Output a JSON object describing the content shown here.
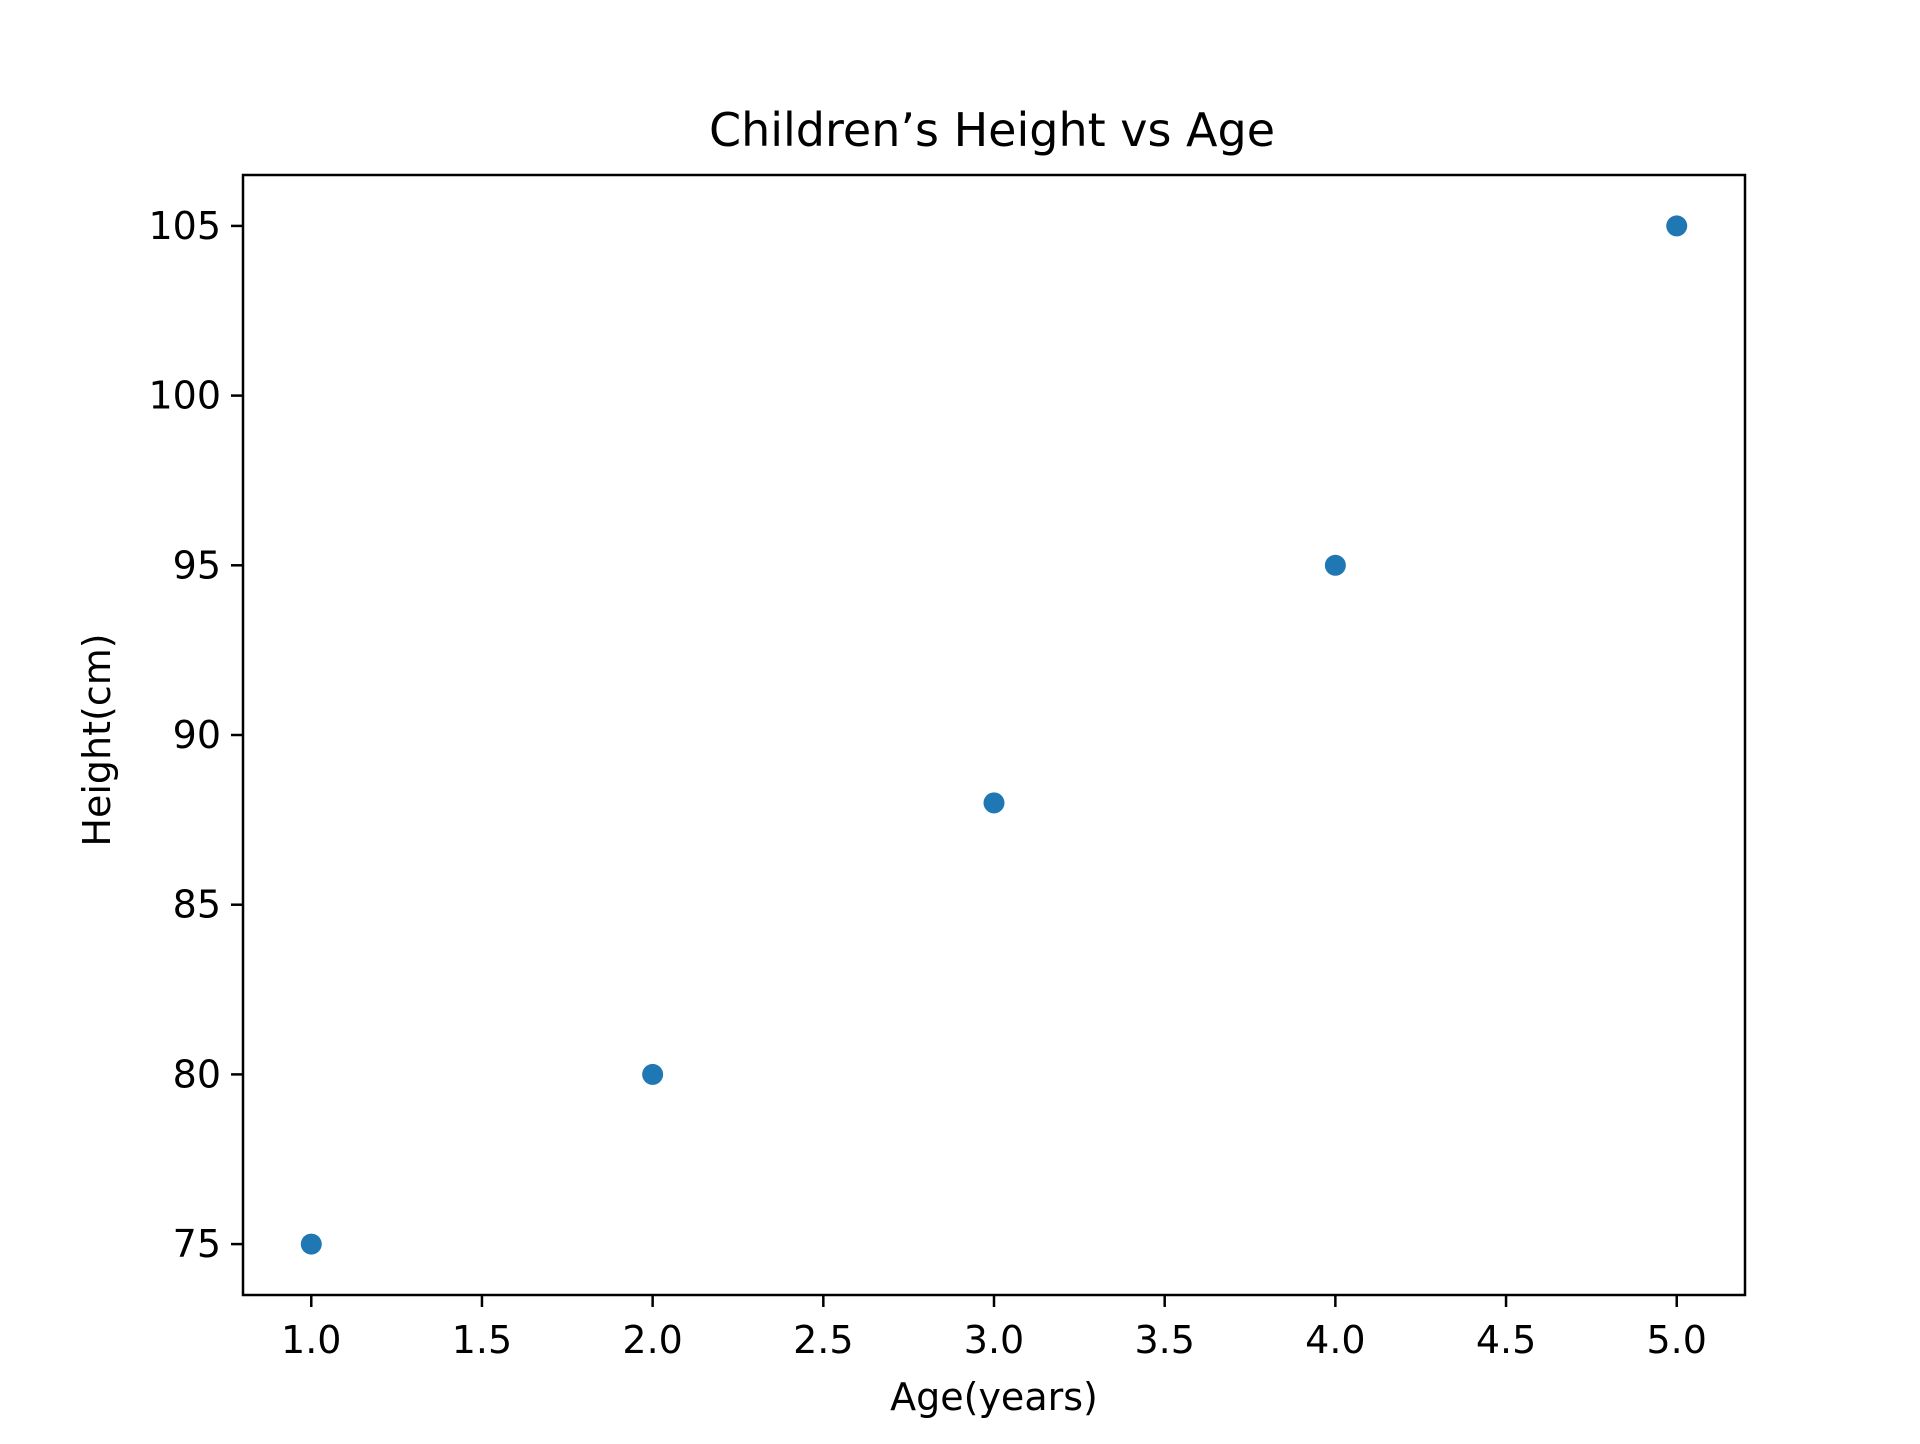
{
  "chart_data": {
    "type": "scatter",
    "title": "Children’s Height vs Age",
    "xlabel": "Age(years)",
    "ylabel": "Height(cm)",
    "x": [
      1.0,
      2.0,
      3.0,
      4.0,
      5.0
    ],
    "y": [
      75,
      80,
      88,
      95,
      105
    ],
    "xlim": [
      0.8,
      5.2
    ],
    "ylim": [
      73.5,
      106.5
    ],
    "xticks": [
      1.0,
      1.5,
      2.0,
      2.5,
      3.0,
      3.5,
      4.0,
      4.5,
      5.0
    ],
    "xtick_labels": [
      "1.0",
      "1.5",
      "2.0",
      "2.5",
      "3.0",
      "3.5",
      "4.0",
      "4.5",
      "5.0"
    ],
    "yticks": [
      75,
      80,
      85,
      90,
      95,
      100,
      105
    ],
    "ytick_labels": [
      "75",
      "80",
      "85",
      "90",
      "95",
      "100",
      "105"
    ],
    "grid": false,
    "legend": "none",
    "marker_color": "#1f77b4"
  }
}
